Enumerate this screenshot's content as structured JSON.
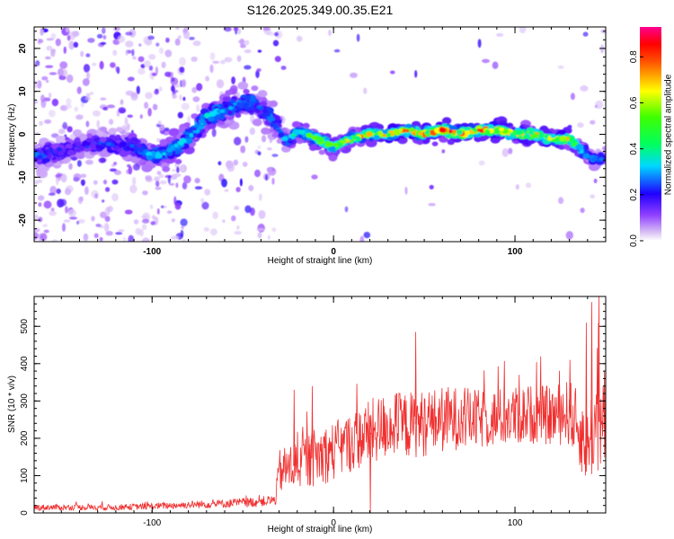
{
  "title": "S126.2025.349.00.35.E21",
  "chart_data": [
    {
      "type": "heatmap",
      "title": "S126.2025.349.00.35.E21",
      "xlabel": "Height of straight line (km)",
      "ylabel": "Frequency (Hz)",
      "xlim": [
        -165,
        150
      ],
      "ylim": [
        -25,
        25
      ],
      "xticks": [
        -100,
        0,
        100
      ],
      "yticks": [
        -20,
        -10,
        0,
        10,
        20
      ],
      "colorbar": {
        "label": "Normalized spectral amplitude",
        "range": [
          0.0,
          0.93
        ],
        "ticks": [
          0.0,
          0.2,
          0.4,
          0.6,
          0.8
        ],
        "colors": [
          "#ffffff",
          "#c8a8f0",
          "#8000ff",
          "#0000ff",
          "#00d0ff",
          "#00ff40",
          "#ffff00",
          "#ff0000",
          "#ff00a0"
        ]
      },
      "ridge_x": [
        -165,
        -150,
        -130,
        -110,
        -100,
        -90,
        -80,
        -70,
        -60,
        -50,
        -45,
        -40,
        -35,
        -30,
        -25,
        -20,
        -15,
        -10,
        -5,
        0,
        10,
        20,
        30,
        40,
        50,
        60,
        70,
        80,
        90,
        100,
        110,
        120,
        130,
        135,
        140,
        145,
        150
      ],
      "ridge_y": [
        -5,
        -4,
        -2,
        -3,
        -5,
        -4,
        -1,
        4,
        6,
        7,
        8,
        6,
        4,
        1,
        -2,
        1,
        0,
        -1,
        -2,
        -3,
        -1,
        0,
        0,
        1,
        0,
        1,
        0,
        1,
        1,
        0,
        0,
        -1,
        -1,
        -3,
        -5,
        -6,
        -5
      ],
      "ridge_amp": [
        0.4,
        0.35,
        0.35,
        0.4,
        0.5,
        0.55,
        0.55,
        0.55,
        0.5,
        0.5,
        0.45,
        0.4,
        0.45,
        0.4,
        0.45,
        0.55,
        0.6,
        0.65,
        0.7,
        0.7,
        0.75,
        0.75,
        0.8,
        0.8,
        0.85,
        0.85,
        0.9,
        0.9,
        0.85,
        0.8,
        0.8,
        0.8,
        0.75,
        0.6,
        0.45,
        0.4,
        0.35
      ]
    },
    {
      "type": "line",
      "xlabel": "Height of straight line (km)",
      "ylabel": "SNR (10 * v/v)",
      "xlim": [
        -165,
        150
      ],
      "ylim": [
        0,
        580
      ],
      "xticks": [
        -100,
        0,
        100
      ],
      "yticks": [
        0,
        100,
        200,
        300,
        400,
        500
      ],
      "color": "#f03030",
      "envelope_x": [
        -165,
        -140,
        -120,
        -100,
        -80,
        -60,
        -40,
        -32,
        -30,
        -20,
        -10,
        0,
        10,
        20,
        30,
        40,
        50,
        60,
        70,
        80,
        90,
        100,
        110,
        120,
        130,
        140,
        145,
        150
      ],
      "envelope_mean": [
        15,
        15,
        15,
        18,
        22,
        25,
        30,
        35,
        110,
        130,
        150,
        165,
        190,
        215,
        235,
        235,
        240,
        250,
        255,
        250,
        255,
        260,
        265,
        260,
        270,
        180,
        250,
        220
      ],
      "envelope_spread": [
        8,
        8,
        8,
        9,
        10,
        12,
        14,
        15,
        60,
        70,
        80,
        80,
        80,
        90,
        90,
        90,
        90,
        90,
        85,
        80,
        80,
        80,
        80,
        80,
        90,
        110,
        140,
        120
      ],
      "spikes": [
        {
          "x": -22,
          "y": 330
        },
        {
          "x": -12,
          "y": 340
        },
        {
          "x": 20,
          "y": 0
        },
        {
          "x": 45,
          "y": 485
        },
        {
          "x": 102,
          "y": 370
        },
        {
          "x": 130,
          "y": 410
        },
        {
          "x": 139,
          "y": 510
        },
        {
          "x": 142,
          "y": 565
        },
        {
          "x": 146,
          "y": 580
        },
        {
          "x": 149,
          "y": 380
        }
      ]
    }
  ]
}
